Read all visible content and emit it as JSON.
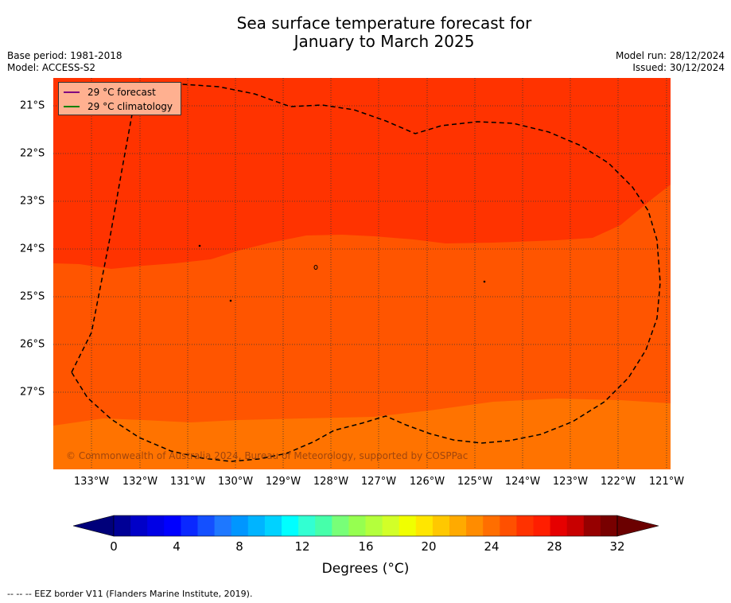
{
  "header": {
    "title_line1": "Sea surface temperature forecast for",
    "title_line2": "January to March 2025",
    "base_period": "Base period: 1981-2018",
    "model": "Model: ACCESS-S2",
    "model_run": "Model run: 28/12/2024",
    "issued": "Issued: 30/12/2024"
  },
  "map": {
    "x_ticks": [
      "133°W",
      "132°W",
      "131°W",
      "130°W",
      "129°W",
      "128°W",
      "127°W",
      "126°W",
      "125°W",
      "124°W",
      "123°W",
      "122°W",
      "121°W"
    ],
    "y_ticks": [
      "21°S",
      "22°S",
      "23°S",
      "24°S",
      "25°S",
      "26°S",
      "27°S"
    ],
    "zone_colors": {
      "hot": "#ff3300",
      "warm": "#ff5500",
      "mild": "#ff7300"
    },
    "legend": [
      {
        "label": "29 °C  forecast",
        "color": "#800080"
      },
      {
        "label": "29 °C  climatology",
        "color": "#008000"
      }
    ],
    "copyright": "© Commonwealth of Australia 2024, Bureau of Meteorology, supported by COSPPac"
  },
  "colorbar": {
    "colors": [
      "#000096",
      "#0000c8",
      "#0000e6",
      "#0000ff",
      "#0a28ff",
      "#1450ff",
      "#1e78ff",
      "#0096ff",
      "#00b4ff",
      "#00d2ff",
      "#00ffff",
      "#32ffd2",
      "#46ffaa",
      "#78ff78",
      "#96ff50",
      "#b4ff3c",
      "#d2ff28",
      "#f0ff00",
      "#ffe600",
      "#ffc800",
      "#ffaa00",
      "#ff8c00",
      "#ff6e00",
      "#ff5000",
      "#ff3200",
      "#ff1e00",
      "#e60000",
      "#c80000",
      "#960000",
      "#780000"
    ],
    "under_color": "#00007a",
    "over_color": "#6b0000",
    "ticks": [
      "0",
      "4",
      "8",
      "12",
      "16",
      "20",
      "24",
      "28",
      "32"
    ],
    "label": "Degrees (°C)"
  },
  "footnote": "--  --  -- EEZ border V11 (Flanders Marine Institute, 2019)."
}
